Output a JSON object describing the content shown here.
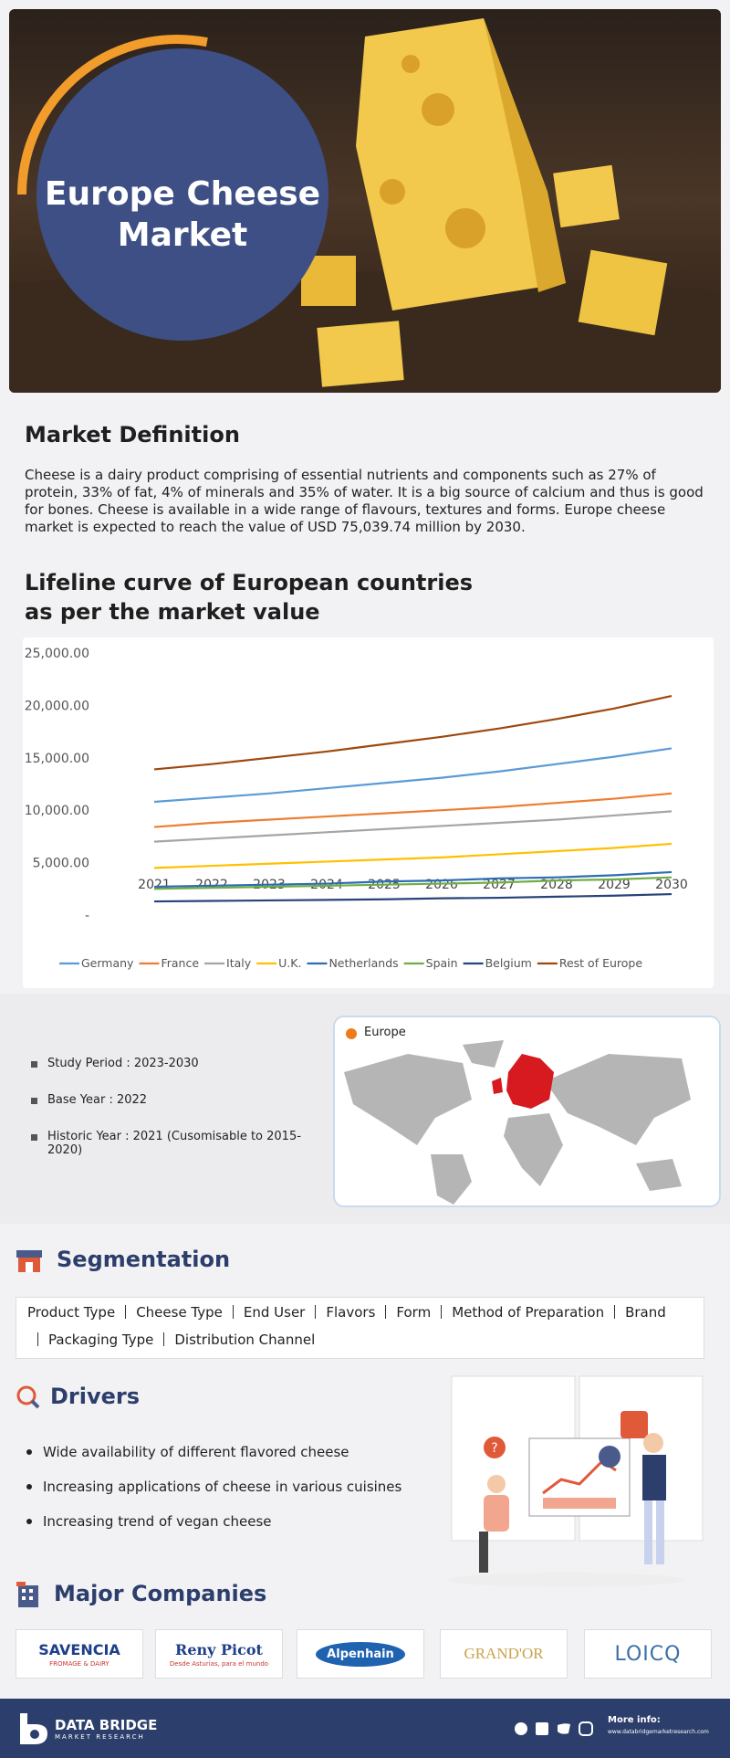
{
  "header": {
    "title": "Europe Cheese Market"
  },
  "market_definition": {
    "heading": "Market Definition",
    "text": "Cheese is a dairy product comprising of essential nutrients and components such as 27% of protein, 33% of fat, 4% of minerals and 35% of water.  It is a big source of calcium and thus is good for bones. Cheese is available in a wide range of flavours, textures and forms. Europe cheese market is expected to reach the value of USD  75,039.74 million by 2030."
  },
  "chart_data": {
    "type": "line",
    "title": "Lifeline curve of European countries as per the market value",
    "categories": [
      "2021",
      "2022",
      "2023",
      "2024",
      "2025",
      "2026",
      "2027",
      "2028",
      "2029",
      "2030"
    ],
    "ylim": [
      0,
      25000
    ],
    "yticks": [
      {
        "value": 0,
        "label": "-"
      },
      {
        "value": 5000,
        "label": "5,000.00"
      },
      {
        "value": 10000,
        "label": "10,000.00"
      },
      {
        "value": 15000,
        "label": "15,000.00"
      },
      {
        "value": 20000,
        "label": "20,000.00"
      },
      {
        "value": 25000,
        "label": "25,000.00"
      }
    ],
    "grid": false,
    "legend": "bottom",
    "series": [
      {
        "name": "Germany",
        "color": "#5b9bd5",
        "values": [
          10800,
          11200,
          11600,
          12100,
          12600,
          13100,
          13700,
          14400,
          15100,
          15900
        ]
      },
      {
        "name": "France",
        "color": "#ed7d31",
        "values": [
          8400,
          8800,
          9100,
          9400,
          9700,
          10000,
          10300,
          10700,
          11100,
          11600
        ]
      },
      {
        "name": "Italy",
        "color": "#a5a5a5",
        "values": [
          7000,
          7300,
          7600,
          7900,
          8200,
          8500,
          8800,
          9100,
          9500,
          9900
        ]
      },
      {
        "name": "U.K.",
        "color": "#ffc000",
        "values": [
          4500,
          4700,
          4900,
          5100,
          5300,
          5500,
          5800,
          6100,
          6400,
          6800
        ]
      },
      {
        "name": "Netherlands",
        "color": "#2e6db4",
        "values": [
          2700,
          2800,
          2900,
          3000,
          3200,
          3300,
          3500,
          3600,
          3800,
          4100
        ]
      },
      {
        "name": "Spain",
        "color": "#70ad47",
        "values": [
          2500,
          2600,
          2700,
          2800,
          2900,
          3000,
          3100,
          3300,
          3400,
          3600
        ]
      },
      {
        "name": "Belgium",
        "color": "#264478",
        "values": [
          1300,
          1350,
          1400,
          1450,
          1500,
          1600,
          1650,
          1750,
          1850,
          2000
        ]
      },
      {
        "name": "Rest of Europe",
        "color": "#9e480e",
        "values": [
          13900,
          14400,
          15000,
          15600,
          16300,
          17000,
          17800,
          18700,
          19700,
          20900
        ]
      }
    ]
  },
  "study": {
    "items": [
      "Study Period : 2023-2030",
      "Base Year : 2022",
      "Historic Year : 2021 (Cusomisable to 2015-2020)"
    ],
    "map_legend": "Europe"
  },
  "segmentation": {
    "heading": "Segmentation",
    "items": [
      "Product Type",
      "Cheese Type",
      "End User",
      "Flavors",
      "Form",
      "Method of Preparation",
      "Brand",
      "Packaging Type",
      "Distribution Channel"
    ]
  },
  "drivers": {
    "heading": "Drivers",
    "items": [
      "Wide availability of different flavored cheese",
      "Increasing applications of cheese in various cuisines",
      "Increasing trend of vegan cheese"
    ]
  },
  "companies": {
    "heading": "Major Companies",
    "logos": [
      {
        "name": "SAVENCIA",
        "tagline": "FROMAGE & DAIRY"
      },
      {
        "name": "Reny Picot",
        "tagline": "Desde Asturias, para el mundo"
      },
      {
        "name": "Alpenhain"
      },
      {
        "name": "GRAND'OR"
      },
      {
        "name": "LOICQ"
      }
    ]
  },
  "footer": {
    "brand": "DATA BRIDGE",
    "brand_sub": "MARKET RESEARCH",
    "more_info": "More info:",
    "url": "www.databridgemarketresearch.com"
  }
}
